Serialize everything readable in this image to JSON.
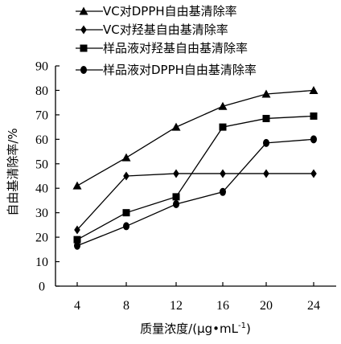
{
  "chart_data": {
    "type": "line",
    "x": [
      4,
      8,
      12,
      16,
      20,
      24
    ],
    "xlabel": "质量浓度/(μg•mL",
    "xlabel_sup": "-1",
    "xlabel_end": ")",
    "ylabel": "自由基清除率/%",
    "ylim": [
      0,
      90
    ],
    "yticks": [
      0,
      10,
      20,
      30,
      40,
      50,
      60,
      70,
      80,
      90
    ],
    "legend_position": "top",
    "series": [
      {
        "name": "VC对DPPH自由基清除率",
        "marker": "triangle",
        "values": [
          41,
          52.5,
          65,
          73.5,
          78.5,
          80
        ]
      },
      {
        "name": "VC对羟基自由基清除率",
        "marker": "diamond",
        "values": [
          23,
          45,
          46,
          46,
          46,
          46
        ]
      },
      {
        "name": "样品液对羟基自由基清除率",
        "marker": "square",
        "values": [
          19,
          30,
          36.5,
          65,
          68.5,
          69.5
        ]
      },
      {
        "name": "样品液对DPPH自由基清除率",
        "marker": "circle",
        "values": [
          16.5,
          24.5,
          33.5,
          38.5,
          58.5,
          60
        ]
      }
    ]
  }
}
